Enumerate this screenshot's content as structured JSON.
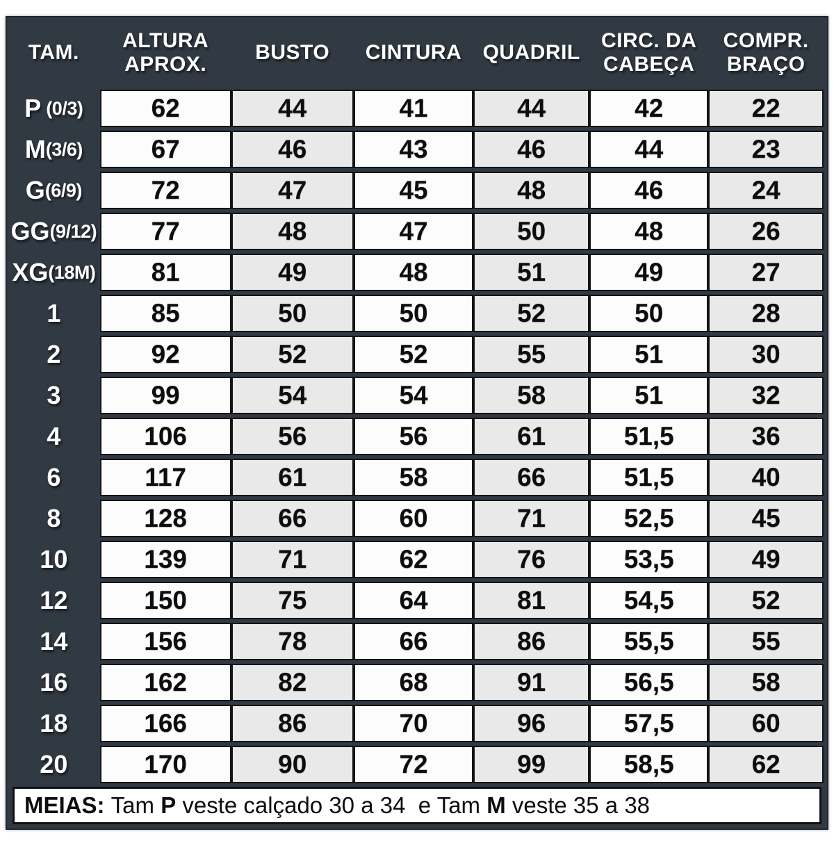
{
  "chart_data": {
    "type": "table",
    "columns": [
      {
        "key": "tam",
        "label": "TAM.",
        "lines": [
          "TAM."
        ]
      },
      {
        "key": "altura",
        "label": "ALTURA APROX.",
        "lines": [
          "ALTURA",
          "APROX."
        ]
      },
      {
        "key": "busto",
        "label": "BUSTO",
        "lines": [
          "BUSTO"
        ]
      },
      {
        "key": "cintura",
        "label": "CINTURA",
        "lines": [
          "CINTURA"
        ]
      },
      {
        "key": "quadril",
        "label": "QUADRIL",
        "lines": [
          "QUADRIL"
        ]
      },
      {
        "key": "cabeca",
        "label": "CIRC. DA CABEÇA",
        "lines": [
          "CIRC. DA",
          "CABEÇA"
        ]
      },
      {
        "key": "braco",
        "label": "COMPR. BRAÇO",
        "lines": [
          "COMPR.",
          "BRAÇO"
        ]
      }
    ],
    "rows": [
      {
        "size": "P",
        "size_detail": " (0/3)",
        "altura": "62",
        "busto": "44",
        "cintura": "41",
        "quadril": "44",
        "cabeca": "42",
        "braco": "22"
      },
      {
        "size": "M",
        "size_detail": "(3/6)",
        "altura": "67",
        "busto": "46",
        "cintura": "43",
        "quadril": "46",
        "cabeca": "44",
        "braco": "23"
      },
      {
        "size": "G",
        "size_detail": "(6/9)",
        "altura": "72",
        "busto": "47",
        "cintura": "45",
        "quadril": "48",
        "cabeca": "46",
        "braco": "24"
      },
      {
        "size": "GG",
        "size_detail": "(9/12)",
        "altura": "77",
        "busto": "48",
        "cintura": "47",
        "quadril": "50",
        "cabeca": "48",
        "braco": "26"
      },
      {
        "size": "XG",
        "size_detail": "(18M)",
        "altura": "81",
        "busto": "49",
        "cintura": "48",
        "quadril": "51",
        "cabeca": "49",
        "braco": "27"
      },
      {
        "size": "1",
        "size_detail": "",
        "altura": "85",
        "busto": "50",
        "cintura": "50",
        "quadril": "52",
        "cabeca": "50",
        "braco": "28"
      },
      {
        "size": "2",
        "size_detail": "",
        "altura": "92",
        "busto": "52",
        "cintura": "52",
        "quadril": "55",
        "cabeca": "51",
        "braco": "30"
      },
      {
        "size": "3",
        "size_detail": "",
        "altura": "99",
        "busto": "54",
        "cintura": "54",
        "quadril": "58",
        "cabeca": "51",
        "braco": "32"
      },
      {
        "size": "4",
        "size_detail": "",
        "altura": "106",
        "busto": "56",
        "cintura": "56",
        "quadril": "61",
        "cabeca": "51,5",
        "braco": "36"
      },
      {
        "size": "6",
        "size_detail": "",
        "altura": "117",
        "busto": "61",
        "cintura": "58",
        "quadril": "66",
        "cabeca": "51,5",
        "braco": "40"
      },
      {
        "size": "8",
        "size_detail": "",
        "altura": "128",
        "busto": "66",
        "cintura": "60",
        "quadril": "71",
        "cabeca": "52,5",
        "braco": "45"
      },
      {
        "size": "10",
        "size_detail": "",
        "altura": "139",
        "busto": "71",
        "cintura": "62",
        "quadril": "76",
        "cabeca": "53,5",
        "braco": "49"
      },
      {
        "size": "12",
        "size_detail": "",
        "altura": "150",
        "busto": "75",
        "cintura": "64",
        "quadril": "81",
        "cabeca": "54,5",
        "braco": "52"
      },
      {
        "size": "14",
        "size_detail": "",
        "altura": "156",
        "busto": "78",
        "cintura": "66",
        "quadril": "86",
        "cabeca": "55,5",
        "braco": "55"
      },
      {
        "size": "16",
        "size_detail": "",
        "altura": "162",
        "busto": "82",
        "cintura": "68",
        "quadril": "91",
        "cabeca": "56,5",
        "braco": "58"
      },
      {
        "size": "18",
        "size_detail": "",
        "altura": "166",
        "busto": "86",
        "cintura": "70",
        "quadril": "96",
        "cabeca": "57,5",
        "braco": "60"
      },
      {
        "size": "20",
        "size_detail": "",
        "altura": "170",
        "busto": "90",
        "cintura": "72",
        "quadril": "99",
        "cabeca": "58,5",
        "braco": "62"
      }
    ]
  },
  "footer": {
    "segments": [
      {
        "text": "MEIAS:",
        "bold": true
      },
      {
        "text": " Tam ",
        "bold": false
      },
      {
        "text": "P",
        "bold": true
      },
      {
        "text": " veste calçado 30 a 34  e Tam ",
        "bold": false
      },
      {
        "text": "M",
        "bold": true
      },
      {
        "text": " veste 35 a 38",
        "bold": false
      }
    ]
  },
  "colors": {
    "background_dark": "#313943",
    "cell_white": "#fcfcfc",
    "cell_gray": "#e9e9e9",
    "cell_border": "#141414",
    "header_text": "#ffffff",
    "cell_text": "#0d0d0d"
  }
}
